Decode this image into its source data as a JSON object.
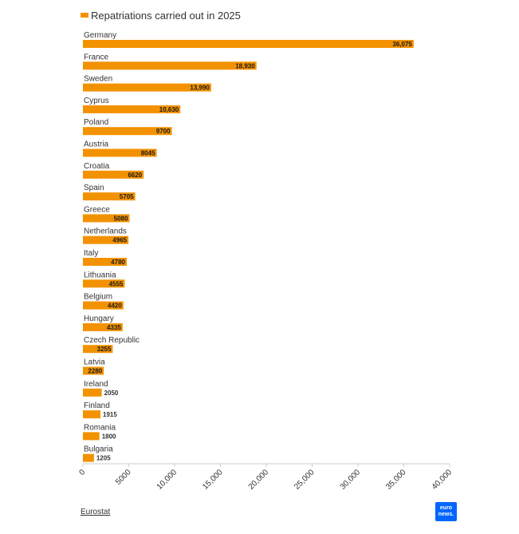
{
  "chart_data": {
    "type": "bar",
    "orientation": "horizontal",
    "legend": "Repatriations carried out in 2025",
    "legend_placement": "top-left",
    "categories": [
      "Germany",
      "France",
      "Sweden",
      "Cyprus",
      "Poland",
      "Austria",
      "Croatia",
      "Spain",
      "Greece",
      "Netherlands",
      "Italy",
      "Lithuania",
      "Belgium",
      "Hungary",
      "Czech Republic",
      "Latvia",
      "Ireland",
      "Finland",
      "Romania",
      "Bulgaria"
    ],
    "values": [
      36075,
      18930,
      13990,
      10630,
      9700,
      8045,
      6620,
      5705,
      5080,
      4965,
      4780,
      4555,
      4420,
      4335,
      3255,
      2280,
      2050,
      1915,
      1800,
      1205
    ],
    "value_labels": [
      "36,075",
      "18,930",
      "13,990",
      "10,630",
      "9700",
      "8045",
      "6620",
      "5705",
      "5080",
      "4965",
      "4780",
      "4555",
      "4420",
      "4335",
      "3255",
      "2280",
      "2050",
      "1915",
      "1800",
      "1205"
    ],
    "xticks": [
      "0",
      "5000",
      "10,000",
      "15,000",
      "20,000",
      "25,000",
      "30,000",
      "35,000",
      "40,000"
    ],
    "xlim": [
      0,
      40000
    ],
    "bar_color": "#f39200",
    "grid": false
  },
  "source": "Eurostat",
  "logo": [
    "euro",
    "news."
  ]
}
